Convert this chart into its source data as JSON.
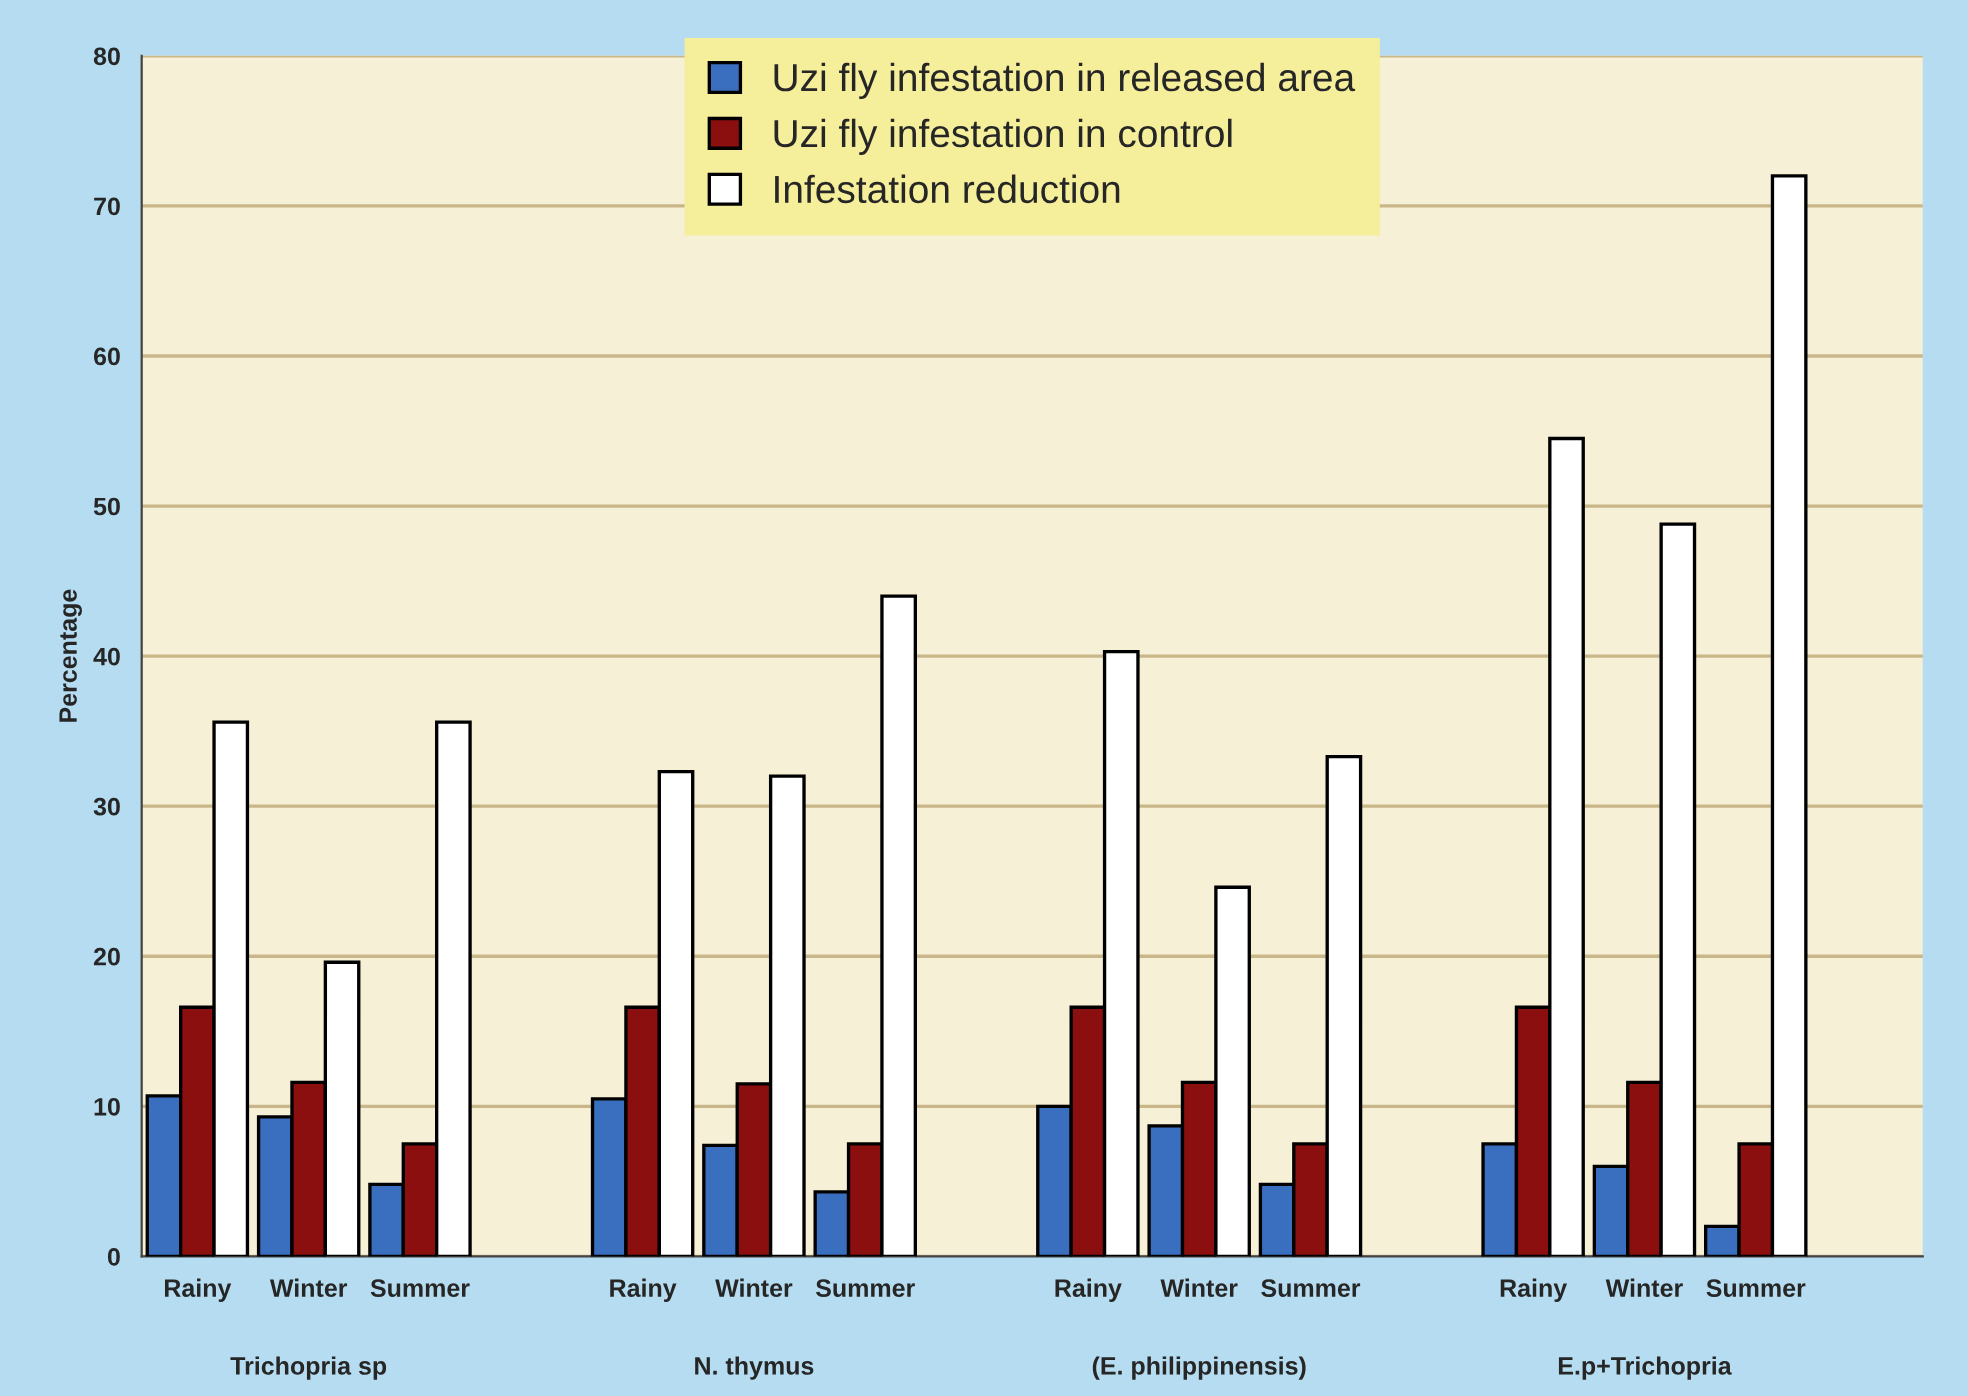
{
  "chart_data": {
    "type": "bar",
    "ylabel": "Percentage",
    "categories": [
      "Rainy",
      "Winter",
      "Summer",
      null,
      "Rainy",
      "Winter",
      "Summer",
      null,
      "Rainy",
      "Winter",
      "Summer",
      null,
      "Rainy",
      "Winter",
      "Summer",
      null
    ],
    "series": [
      {
        "name": "Uzi fly infestation in released area",
        "color": "#3a6fc0",
        "values": [
          10.7,
          9.3,
          4.8,
          null,
          10.5,
          7.4,
          4.3,
          null,
          10.0,
          8.7,
          4.8,
          null,
          7.5,
          6.0,
          2.0,
          null
        ]
      },
      {
        "name": "Uzi fly infestation in control",
        "color": "#8b0f0f",
        "values": [
          16.6,
          11.6,
          7.5,
          null,
          16.6,
          11.5,
          7.5,
          null,
          16.6,
          11.6,
          7.5,
          null,
          16.6,
          11.6,
          7.5,
          null
        ]
      },
      {
        "name": "Infestation reduction",
        "color": "#ffffff",
        "values": [
          35.6,
          19.6,
          35.6,
          null,
          32.3,
          32.0,
          44.0,
          null,
          40.3,
          24.6,
          33.3,
          null,
          54.5,
          48.8,
          72.0,
          null
        ]
      }
    ],
    "annotations": [
      "Trichopria sp",
      "N. thymus",
      "(E. philippinensis)",
      "E.p+Trichopria"
    ],
    "ylim": [
      0,
      80
    ],
    "yticks": [
      0,
      10,
      20,
      30,
      40,
      50,
      60,
      70,
      80
    ],
    "grid": "y",
    "legend": "top"
  }
}
